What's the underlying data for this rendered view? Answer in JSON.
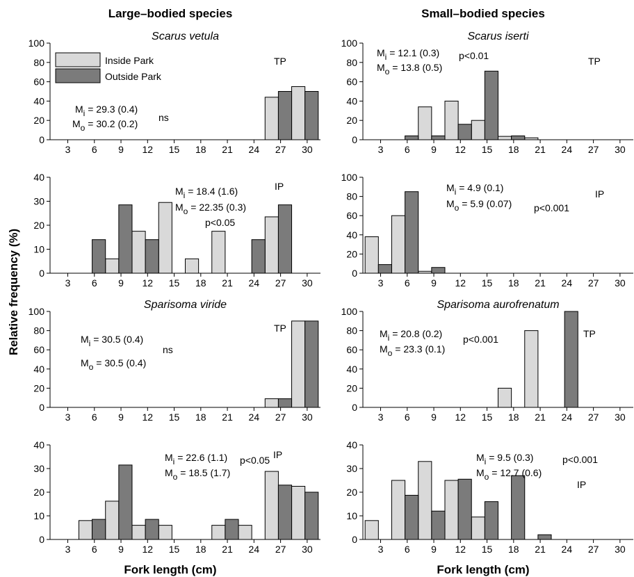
{
  "figure": {
    "left_column_title": "Large–bodied species",
    "right_column_title": "Small–bodied species",
    "ylabel": "Relative frequency (%)",
    "xlabel_left": "Fork length (cm)",
    "xlabel_right": "Fork length (cm)"
  },
  "legend": {
    "inside": "Inside Park",
    "outside": "Outside Park"
  },
  "colors": {
    "inside": "#d9d9d9",
    "outside": "#7b7b7b",
    "edge": "#000000"
  },
  "chart_data": [
    {
      "type": "bar",
      "species": "Scarus vetula",
      "site": "TP",
      "x_ticks": [
        3,
        6,
        9,
        12,
        15,
        18,
        21,
        24,
        27,
        30
      ],
      "xlim": [
        1,
        31.5
      ],
      "ylim": [
        0,
        100
      ],
      "y_ticks": [
        0,
        20,
        40,
        60,
        80,
        100
      ],
      "series": [
        {
          "name": "Inside Park",
          "x": [
            26,
            29
          ],
          "values": [
            44,
            55
          ]
        },
        {
          "name": "Outside Park",
          "x": [
            27.5,
            30.5
          ],
          "values": [
            50,
            50
          ]
        }
      ],
      "annotations": [
        "M_i = 29.3 (0.4)",
        "M_o = 30.2 (0.2)",
        "ns"
      ]
    },
    {
      "type": "bar",
      "species": "",
      "site": "IP",
      "x_ticks": [
        3,
        6,
        9,
        12,
        15,
        18,
        21,
        24,
        27,
        30
      ],
      "xlim": [
        1,
        31.5
      ],
      "ylim": [
        0,
        40
      ],
      "y_ticks": [
        0,
        10,
        20,
        30,
        40
      ],
      "series": [
        {
          "name": "Inside Park",
          "x": [
            8,
            11,
            14,
            17,
            20,
            26
          ],
          "values": [
            6,
            17.5,
            29.5,
            6,
            17.5,
            23.5
          ]
        },
        {
          "name": "Outside Park",
          "x": [
            6.5,
            9.5,
            12.5,
            24.5,
            27.5
          ],
          "values": [
            14,
            28.5,
            14,
            14,
            28.5
          ]
        }
      ],
      "annotations": [
        "M_i = 18.4 (1.6)",
        "M_o = 22.35 (0.3)",
        "p<0.05"
      ]
    },
    {
      "type": "bar",
      "species": "Sparisoma viride",
      "site": "TP",
      "x_ticks": [
        3,
        6,
        9,
        12,
        15,
        18,
        21,
        24,
        27,
        30
      ],
      "xlim": [
        1,
        31.5
      ],
      "ylim": [
        0,
        100
      ],
      "y_ticks": [
        0,
        20,
        40,
        60,
        80,
        100
      ],
      "series": [
        {
          "name": "Inside Park",
          "x": [
            26,
            29
          ],
          "values": [
            9,
            90
          ]
        },
        {
          "name": "Outside Park",
          "x": [
            27.5,
            30.5
          ],
          "values": [
            9,
            90
          ]
        }
      ],
      "annotations": [
        "M_i = 30.5 (0.4)",
        "M_o = 30.5 (0.4)",
        "ns"
      ]
    },
    {
      "type": "bar",
      "species": "",
      "site": "IP",
      "x_ticks": [
        3,
        6,
        9,
        12,
        15,
        18,
        21,
        24,
        27,
        30
      ],
      "xlim": [
        1,
        31.5
      ],
      "ylim": [
        0,
        40
      ],
      "y_ticks": [
        0,
        10,
        20,
        30,
        40
      ],
      "series": [
        {
          "name": "Inside Park",
          "x": [
            5,
            8,
            11,
            14,
            20,
            23,
            26,
            29
          ],
          "values": [
            8,
            16.2,
            6,
            6,
            6,
            6,
            28.8,
            22.5
          ]
        },
        {
          "name": "Outside Park",
          "x": [
            6.5,
            9.5,
            12.5,
            21.5,
            27.5,
            30.5
          ],
          "values": [
            8.5,
            31.5,
            8.5,
            8.5,
            23,
            20
          ]
        }
      ],
      "annotations": [
        "M_i = 22.6 (1.1)",
        "M_o = 18.5 (1.7)",
        "p<0.05"
      ]
    },
    {
      "type": "bar",
      "species": "Scarus iserti",
      "site": "TP",
      "x_ticks": [
        3,
        6,
        9,
        12,
        15,
        18,
        21,
        24,
        27,
        30
      ],
      "xlim": [
        1,
        31.5
      ],
      "ylim": [
        0,
        100
      ],
      "y_ticks": [
        0,
        20,
        40,
        60,
        80,
        100
      ],
      "series": [
        {
          "name": "Inside Park",
          "x": [
            8,
            11,
            14,
            17,
            20
          ],
          "values": [
            34,
            40,
            20,
            3.5,
            2
          ]
        },
        {
          "name": "Outside Park",
          "x": [
            6.5,
            9.5,
            12.5,
            15.5,
            18.5
          ],
          "values": [
            4,
            4,
            16,
            71,
            4
          ]
        }
      ],
      "annotations": [
        "M_i = 12.1 (0.3)",
        "M_o = 13.8 (0.5)",
        "p<0.01"
      ]
    },
    {
      "type": "bar",
      "species": "",
      "site": "IP",
      "x_ticks": [
        3,
        6,
        9,
        12,
        15,
        18,
        21,
        24,
        27,
        30
      ],
      "xlim": [
        1,
        31.5
      ],
      "ylim": [
        0,
        100
      ],
      "y_ticks": [
        0,
        20,
        40,
        60,
        80,
        100
      ],
      "series": [
        {
          "name": "Inside Park",
          "x": [
            2,
            5,
            8
          ],
          "values": [
            38,
            60,
            2
          ]
        },
        {
          "name": "Outside Park",
          "x": [
            3.5,
            6.5,
            9.5
          ],
          "values": [
            9,
            85,
            6
          ]
        }
      ],
      "annotations": [
        "M_i = 4.9 (0.1)",
        "M_o = 5.9 (0.07)",
        "p<0.001"
      ]
    },
    {
      "type": "bar",
      "species": "Sparisoma aurofrenatum",
      "site": "TP",
      "x_ticks": [
        3,
        6,
        9,
        12,
        15,
        18,
        21,
        24,
        27,
        30
      ],
      "xlim": [
        1,
        31.5
      ],
      "ylim": [
        0,
        100
      ],
      "y_ticks": [
        0,
        20,
        40,
        60,
        80,
        100
      ],
      "series": [
        {
          "name": "Inside Park",
          "x": [
            17,
            20
          ],
          "values": [
            20,
            80
          ]
        },
        {
          "name": "Outside Park",
          "x": [
            24.5
          ],
          "values": [
            100
          ]
        }
      ],
      "annotations": [
        "M_i = 20.8 (0.2)",
        "M_o = 23.3 (0.1)",
        "p<0.001"
      ]
    },
    {
      "type": "bar",
      "species": "",
      "site": "IP",
      "x_ticks": [
        3,
        6,
        9,
        12,
        15,
        18,
        21,
        24,
        27,
        30
      ],
      "xlim": [
        1,
        31.5
      ],
      "ylim": [
        0,
        40
      ],
      "y_ticks": [
        0,
        10,
        20,
        30,
        40
      ],
      "series": [
        {
          "name": "Inside Park",
          "x": [
            2,
            5,
            8,
            11,
            14
          ],
          "values": [
            8,
            25,
            33,
            25,
            9.5
          ]
        },
        {
          "name": "Outside Park",
          "x": [
            6.5,
            9.5,
            12.5,
            15.5,
            18.5,
            21.5
          ],
          "values": [
            18.7,
            12,
            25.5,
            16,
            27,
            2
          ]
        }
      ],
      "annotations": [
        "M_i = 9.5 (0.3)",
        "M_o = 12.7 (0.6)",
        "p<0.001"
      ]
    }
  ]
}
